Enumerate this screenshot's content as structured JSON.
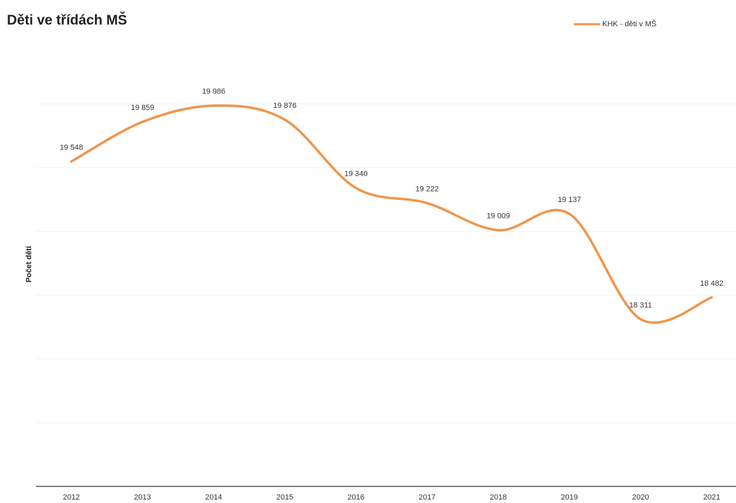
{
  "chart_data": {
    "type": "line",
    "title": "Děti ve třídách MŠ",
    "ylabel": "Počet dětí",
    "categories": [
      "2012",
      "2013",
      "2014",
      "2015",
      "2016",
      "2017",
      "2018",
      "2019",
      "2020",
      "2021"
    ],
    "series": [
      {
        "name": "KHK - děti v MŠ",
        "color": "#f0954a",
        "values": [
          19548,
          19859,
          19986,
          19876,
          19340,
          19222,
          19009,
          19137,
          18311,
          18482
        ],
        "value_labels": [
          "19 548",
          "19 859",
          "19 986",
          "19 876",
          "19 340",
          "19 222",
          "19 009",
          "19 137",
          "18 311",
          "18 482"
        ]
      }
    ],
    "ylim": [
      17000,
      20500
    ],
    "yticks": [
      17500,
      18000,
      18500,
      19000,
      19500,
      20000
    ],
    "grid": true,
    "smooth": true,
    "legend": "top-right"
  }
}
